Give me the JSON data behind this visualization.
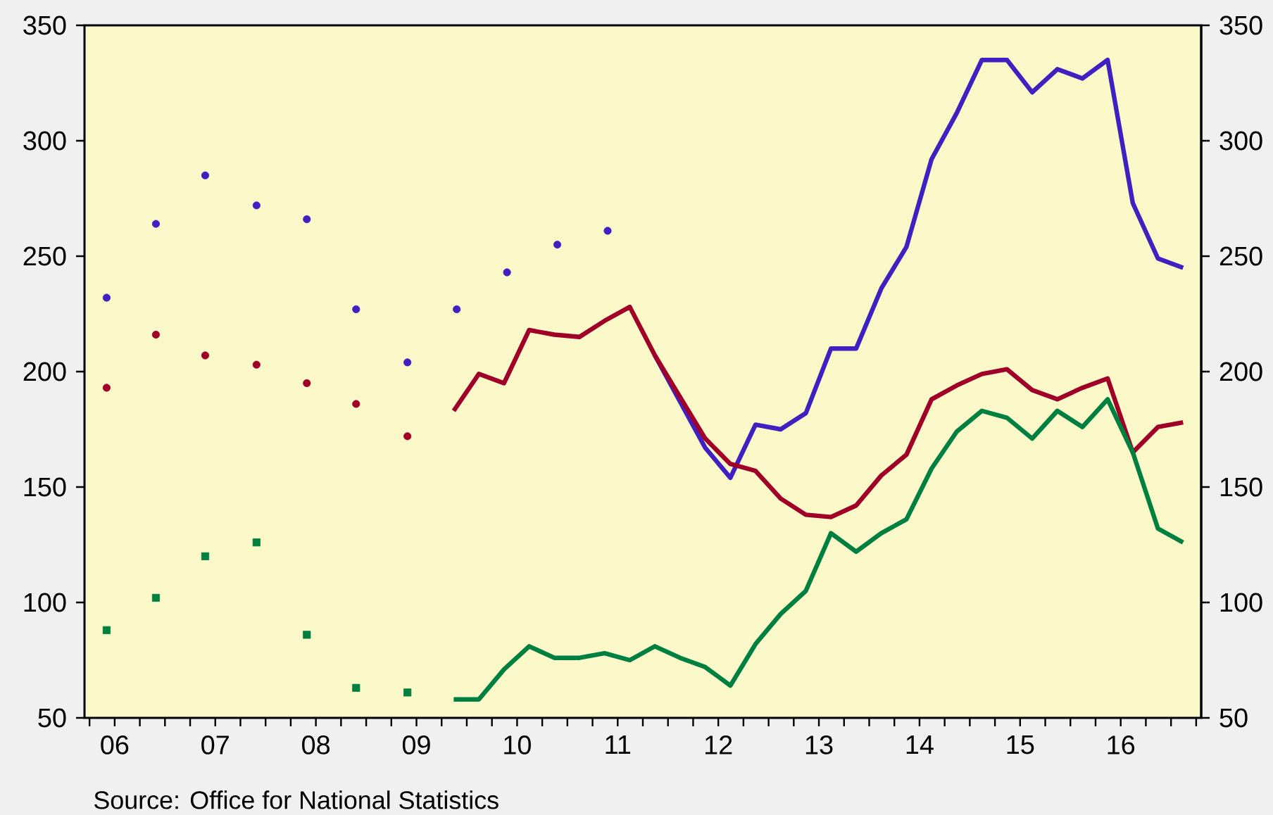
{
  "chart_data": {
    "type": "line",
    "annotations": [
      "Source:  Office for National Statistics"
    ],
    "xlim": [
      2005.7,
      2016.8
    ],
    "xticks": [
      {
        "value": 2005.75,
        "label": null
      },
      {
        "value": 2006,
        "label": "06"
      },
      {
        "value": 2006.25,
        "label": null
      },
      {
        "value": 2006.5,
        "label": null
      },
      {
        "value": 2006.75,
        "label": null
      },
      {
        "value": 2007,
        "label": "07"
      },
      {
        "value": 2007.25,
        "label": null
      },
      {
        "value": 2007.5,
        "label": null
      },
      {
        "value": 2007.75,
        "label": null
      },
      {
        "value": 2008,
        "label": "08"
      },
      {
        "value": 2008.25,
        "label": null
      },
      {
        "value": 2008.5,
        "label": null
      },
      {
        "value": 2008.75,
        "label": null
      },
      {
        "value": 2009,
        "label": "09"
      },
      {
        "value": 2009.25,
        "label": null
      },
      {
        "value": 2009.5,
        "label": null
      },
      {
        "value": 2009.75,
        "label": null
      },
      {
        "value": 2010,
        "label": "10"
      },
      {
        "value": 2010.25,
        "label": null
      },
      {
        "value": 2010.5,
        "label": null
      },
      {
        "value": 2010.75,
        "label": null
      },
      {
        "value": 2011,
        "label": "11"
      },
      {
        "value": 2011.25,
        "label": null
      },
      {
        "value": 2011.5,
        "label": null
      },
      {
        "value": 2011.75,
        "label": null
      },
      {
        "value": 2012,
        "label": "12"
      },
      {
        "value": 2012.25,
        "label": null
      },
      {
        "value": 2012.5,
        "label": null
      },
      {
        "value": 2012.75,
        "label": null
      },
      {
        "value": 2013,
        "label": "13"
      },
      {
        "value": 2013.25,
        "label": null
      },
      {
        "value": 2013.5,
        "label": null
      },
      {
        "value": 2013.75,
        "label": null
      },
      {
        "value": 2014,
        "label": "14"
      },
      {
        "value": 2014.25,
        "label": null
      },
      {
        "value": 2014.5,
        "label": null
      },
      {
        "value": 2014.75,
        "label": null
      },
      {
        "value": 2015,
        "label": "15"
      },
      {
        "value": 2015.25,
        "label": null
      },
      {
        "value": 2015.5,
        "label": null
      },
      {
        "value": 2015.75,
        "label": null
      },
      {
        "value": 2016,
        "label": "16"
      },
      {
        "value": 2016.25,
        "label": null
      },
      {
        "value": 2016.5,
        "label": null
      },
      {
        "value": 2016.75,
        "label": null
      }
    ],
    "ylim": [
      50,
      350
    ],
    "yticks": [
      50,
      100,
      150,
      200,
      250,
      300,
      350
    ],
    "y2lim": [
      50,
      350
    ],
    "y2ticks": [
      50,
      100,
      150,
      200,
      250,
      300,
      350
    ],
    "series": [
      {
        "type": "scatter",
        "marker": "circle",
        "color": "#4020c0",
        "x": [
          2005.92,
          2006.41,
          2006.9,
          2007.41,
          2007.91,
          2008.4,
          2008.91,
          2009.4,
          2009.9,
          2010.4,
          2010.9
        ],
        "values": [
          232,
          264,
          285,
          272,
          266,
          227,
          204,
          227,
          243,
          255,
          261
        ]
      },
      {
        "type": "scatter",
        "marker": "circle",
        "color": "#a00028",
        "x": [
          2005.92,
          2006.41,
          2006.9,
          2007.41,
          2007.91,
          2008.4,
          2008.91
        ],
        "values": [
          193,
          216,
          207,
          203,
          195,
          186,
          172
        ]
      },
      {
        "type": "scatter",
        "marker": "square",
        "color": "#008040",
        "x": [
          2005.92,
          2006.41,
          2006.9,
          2007.41,
          2007.91,
          2008.4,
          2008.91
        ],
        "values": [
          88,
          102,
          120,
          126,
          86,
          63,
          61
        ]
      },
      {
        "color": "#4020c0",
        "x": [
          2011.37,
          2011.62,
          2011.87,
          2012.12,
          2012.37,
          2012.62,
          2012.87,
          2013.12,
          2013.37,
          2013.62,
          2013.87,
          2014.12,
          2014.37,
          2014.62,
          2014.87,
          2015.12,
          2015.37,
          2015.62,
          2015.87,
          2016.12,
          2016.37,
          2016.62
        ],
        "values": [
          207,
          187,
          167,
          154,
          177,
          175,
          182,
          210,
          210,
          236,
          254,
          292,
          312,
          335,
          335,
          321,
          331,
          327,
          335,
          273,
          249,
          245
        ]
      },
      {
        "color": "#a00028",
        "x": [
          2009.37,
          2009.62,
          2009.87,
          2010.12,
          2010.37,
          2010.62,
          2010.87,
          2011.12,
          2011.37,
          2011.62,
          2011.87,
          2012.12,
          2012.37,
          2012.62,
          2012.87,
          2013.12,
          2013.37,
          2013.62,
          2013.87,
          2014.12,
          2014.37,
          2014.62,
          2014.87,
          2015.12,
          2015.37,
          2015.62,
          2015.87,
          2016.12,
          2016.37,
          2016.62
        ],
        "values": [
          183,
          199,
          195,
          218,
          216,
          215,
          222,
          228,
          207,
          189,
          171,
          160,
          157,
          145,
          138,
          137,
          142,
          155,
          164,
          188,
          194,
          199,
          201,
          192,
          188,
          193,
          197,
          165,
          176,
          178
        ]
      },
      {
        "color": "#008040",
        "x": [
          2009.37,
          2009.62,
          2009.87,
          2010.12,
          2010.37,
          2010.62,
          2010.87,
          2011.12,
          2011.37,
          2011.62,
          2011.87,
          2012.12,
          2012.37,
          2012.62,
          2012.87,
          2013.12,
          2013.37,
          2013.62,
          2013.87,
          2014.12,
          2014.37,
          2014.62,
          2014.87,
          2015.12,
          2015.37,
          2015.62,
          2015.87,
          2016.12,
          2016.37,
          2016.62
        ],
        "values": [
          58,
          58,
          71,
          81,
          76,
          76,
          78,
          75,
          81,
          76,
          72,
          64,
          82,
          95,
          105,
          130,
          122,
          130,
          136,
          158,
          174,
          183,
          180,
          171,
          183,
          176,
          188,
          165,
          132,
          126
        ]
      }
    ]
  }
}
